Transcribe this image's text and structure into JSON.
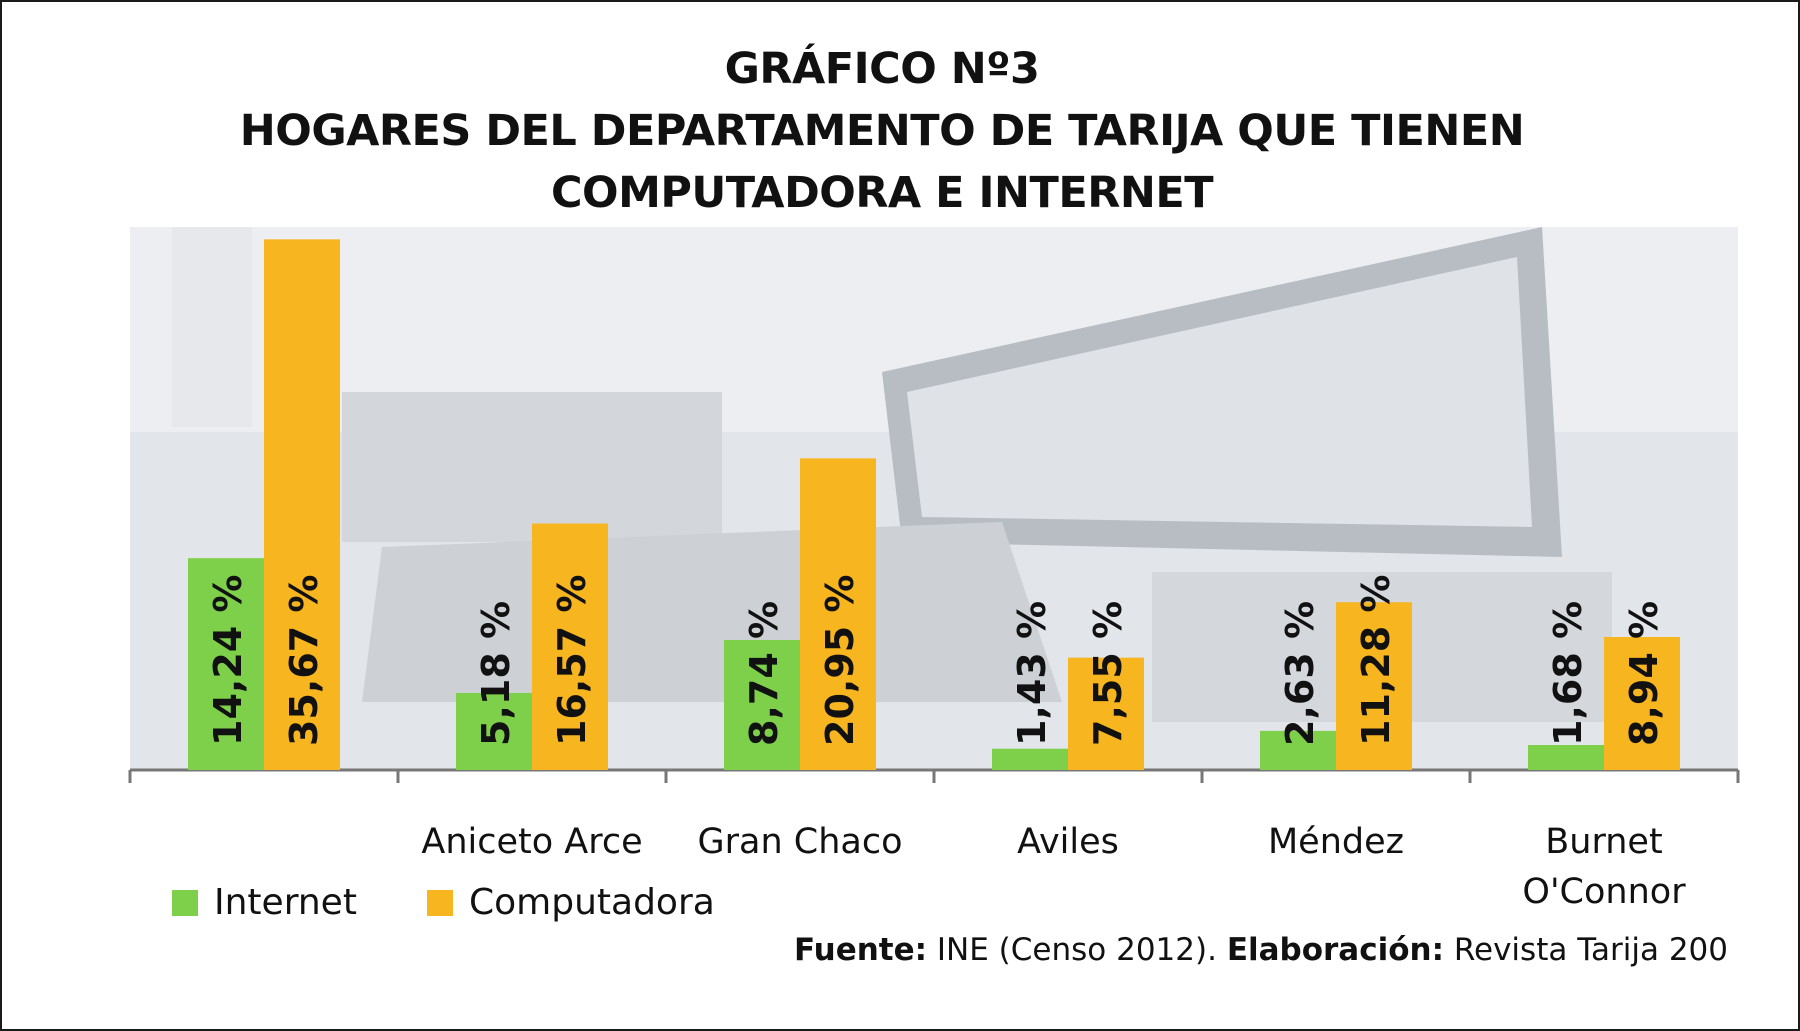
{
  "title_lines": [
    "GRÁFICO Nº3",
    "HOGARES DEL DEPARTAMENTO DE TARIJA QUE TIENEN",
    "COMPUTADORA E INTERNET"
  ],
  "chart_data": {
    "type": "bar",
    "title": "GRÁFICO Nº3 HOGARES DEL DEPARTAMENTO DE TARIJA QUE TIENEN COMPUTADORA E INTERNET",
    "categories": [
      "",
      "Aniceto Arce",
      "Gran Chaco",
      "Aviles",
      "Méndez",
      "Burnet\nO'Connor"
    ],
    "series": [
      {
        "name": "Internet",
        "color": "#7ed04b",
        "values": [
          14.24,
          5.18,
          8.74,
          1.43,
          2.63,
          1.68
        ],
        "labels": [
          "14,24 %",
          "5,18 %",
          "8,74 %",
          "1,43 %",
          "2,63 %",
          "1,68 %"
        ]
      },
      {
        "name": "Computadora",
        "color": "#f7b51f",
        "values": [
          35.67,
          16.57,
          20.95,
          7.55,
          11.28,
          8.94
        ],
        "labels": [
          "35,67 %",
          "16,57 %",
          "20,95 %",
          "7,55 %",
          "11,28 %",
          "8,94 %"
        ]
      }
    ],
    "ylim": [
      0,
      36.5
    ],
    "grid": false,
    "legend_position": "bottom-left",
    "data_label_orientation": "vertical"
  },
  "legend": [
    {
      "label": "Internet",
      "color": "#7ed04b"
    },
    {
      "label": "Computadora",
      "color": "#f7b51f"
    }
  ],
  "source": {
    "fuente_label": "Fuente:",
    "fuente_text": "INE (Censo 2012).",
    "elaboracion_label": "Elaboración:",
    "elaboracion_text": "Revista Tarija 200"
  },
  "background_image": "office-desk-computer-photo"
}
